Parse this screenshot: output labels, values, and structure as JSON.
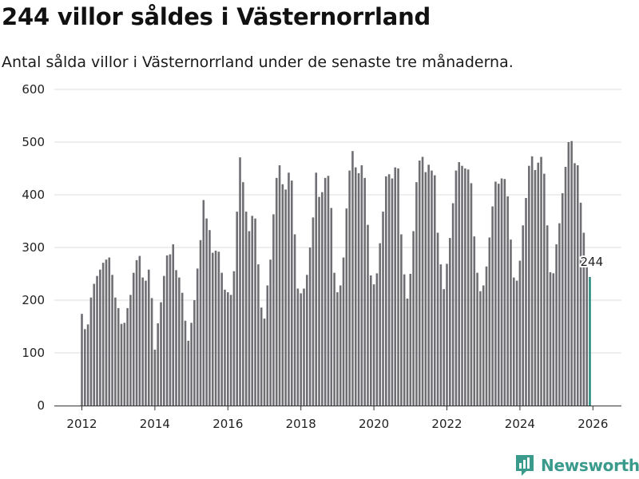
{
  "colors": {
    "bar": "#6f6e73",
    "highlight": "#2a8c80",
    "grid": "#dcdcdc",
    "brand": "#3a9a8c"
  },
  "brand": {
    "name": "Newsworthy"
  },
  "chart_data": {
    "type": "bar",
    "title": "244 villor såldes i Västernorrland",
    "subtitle": "Antal sålda villor i Västernorrland under de senaste tre månaderna.",
    "xlabel": "",
    "ylabel": "",
    "ylim": [
      0,
      600
    ],
    "yticks": [
      0,
      100,
      200,
      300,
      400,
      500,
      600
    ],
    "xticks": [
      "2012",
      "2014",
      "2016",
      "2018",
      "2020",
      "2022",
      "2024",
      "2026"
    ],
    "start": {
      "year": 2012,
      "month": 1
    },
    "series": [
      {
        "name": "Antal sålda villor (rullande tre månader)",
        "values": [
          174,
          145,
          154,
          205,
          231,
          246,
          258,
          271,
          277,
          281,
          248,
          205,
          185,
          155,
          157,
          185,
          210,
          252,
          276,
          284,
          243,
          237,
          258,
          204,
          106,
          156,
          196,
          246,
          285,
          287,
          306,
          257,
          243,
          214,
          161,
          123,
          157,
          200,
          260,
          314,
          390,
          355,
          333,
          290,
          294,
          292,
          252,
          220,
          215,
          210,
          255,
          368,
          471,
          424,
          368,
          331,
          360,
          355,
          268,
          186,
          165,
          228,
          277,
          363,
          432,
          456,
          420,
          410,
          442,
          427,
          325,
          222,
          213,
          222,
          248,
          300,
          357,
          442,
          396,
          405,
          432,
          436,
          375,
          252,
          215,
          228,
          281,
          374,
          446,
          483,
          452,
          441,
          456,
          432,
          343,
          247,
          230,
          251,
          308,
          368,
          435,
          439,
          431,
          452,
          450,
          325,
          249,
          203,
          250,
          331,
          424,
          465,
          472,
          443,
          457,
          446,
          437,
          328,
          268,
          221,
          269,
          318,
          384,
          446,
          462,
          455,
          450,
          448,
          422,
          321,
          252,
          217,
          228,
          264,
          319,
          378,
          425,
          421,
          431,
          430,
          397,
          315,
          243,
          237,
          275,
          342,
          394,
          455,
          473,
          447,
          461,
          472,
          440,
          342,
          253,
          251,
          306,
          346,
          403,
          453,
          500,
          502,
          460,
          456,
          385,
          328,
          265,
          244
        ]
      }
    ],
    "highlight_label": "244"
  }
}
